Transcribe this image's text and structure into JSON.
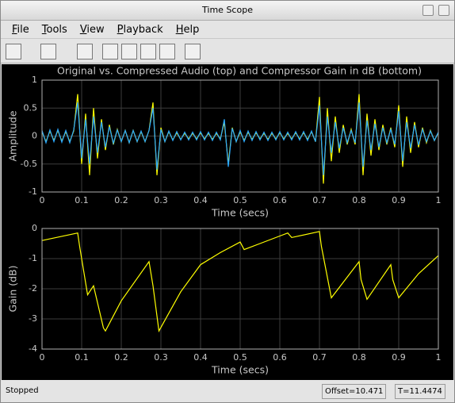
{
  "window": {
    "title": "Time Scope"
  },
  "menu": [
    "File",
    "Tools",
    "View",
    "Playback",
    "Help"
  ],
  "status": {
    "state": "Stopped",
    "offset": "Offset=10.471",
    "time": "T=11.4474"
  },
  "chart_data": [
    {
      "type": "line",
      "title": "Original vs. Compressed Audio (top) and Compressor Gain in dB (bottom)",
      "x_label": "Time (secs)",
      "y_label": "Amplitude",
      "xlim": [
        0,
        1
      ],
      "xticks": [
        0,
        0.1,
        0.2,
        0.3,
        0.4,
        0.5,
        0.6,
        0.7,
        0.8,
        0.9,
        1
      ],
      "ylim": [
        -1,
        1
      ],
      "yticks": [
        -1,
        -0.5,
        0,
        0.5,
        1
      ],
      "grid": true,
      "x": [
        0,
        0.01,
        0.02,
        0.03,
        0.04,
        0.05,
        0.06,
        0.07,
        0.08,
        0.09,
        0.1,
        0.11,
        0.12,
        0.13,
        0.14,
        0.15,
        0.16,
        0.17,
        0.18,
        0.19,
        0.2,
        0.21,
        0.22,
        0.23,
        0.24,
        0.25,
        0.26,
        0.27,
        0.28,
        0.29,
        0.3,
        0.31,
        0.32,
        0.33,
        0.34,
        0.35,
        0.36,
        0.37,
        0.38,
        0.39,
        0.4,
        0.41,
        0.42,
        0.43,
        0.44,
        0.45,
        0.46,
        0.47,
        0.48,
        0.49,
        0.5,
        0.51,
        0.52,
        0.53,
        0.54,
        0.55,
        0.56,
        0.57,
        0.58,
        0.59,
        0.6,
        0.61,
        0.62,
        0.63,
        0.64,
        0.65,
        0.66,
        0.67,
        0.68,
        0.69,
        0.7,
        0.71,
        0.72,
        0.73,
        0.74,
        0.75,
        0.76,
        0.77,
        0.78,
        0.79,
        0.8,
        0.81,
        0.82,
        0.83,
        0.84,
        0.85,
        0.86,
        0.87,
        0.88,
        0.89,
        0.9,
        0.91,
        0.92,
        0.93,
        0.94,
        0.95,
        0.96,
        0.97,
        0.98,
        0.99,
        1
      ],
      "series": [
        {
          "color": "#ffff00",
          "values": [
            0.08,
            -0.1,
            0.09,
            -0.08,
            0.1,
            -0.09,
            0.08,
            -0.1,
            0.09,
            0.75,
            -0.5,
            0.4,
            -0.7,
            0.5,
            -0.4,
            0.3,
            -0.25,
            0.2,
            -0.15,
            0.12,
            -0.1,
            0.1,
            -0.12,
            0.1,
            -0.1,
            0.08,
            -0.1,
            0.1,
            0.6,
            -0.7,
            0.15,
            -0.1,
            0.08,
            -0.07,
            0.06,
            -0.06,
            0.05,
            -0.05,
            0.05,
            -0.05,
            0.06,
            -0.05,
            0.05,
            -0.06,
            0.05,
            -0.05,
            0.25,
            -0.5,
            0.15,
            -0.1,
            0.08,
            -0.08,
            0.07,
            -0.06,
            0.06,
            -0.05,
            0.05,
            -0.06,
            0.05,
            -0.05,
            0.06,
            -0.05,
            0.05,
            -0.05,
            0.06,
            -0.05,
            0.06,
            -0.06,
            0.08,
            -0.1,
            0.7,
            -0.85,
            0.5,
            -0.45,
            0.35,
            -0.3,
            0.2,
            -0.15,
            0.12,
            -0.15,
            0.75,
            -0.7,
            0.4,
            -0.35,
            0.3,
            -0.25,
            0.2,
            -0.15,
            0.15,
            -0.2,
            0.55,
            -0.55,
            0.35,
            -0.3,
            0.25,
            -0.2,
            0.15,
            -0.12,
            0.1,
            -0.08,
            0.06
          ]
        },
        {
          "color": "#29a8ff",
          "values": [
            0.1,
            -0.12,
            0.11,
            -0.1,
            0.12,
            -0.11,
            0.1,
            -0.12,
            0.11,
            0.6,
            -0.4,
            0.3,
            -0.5,
            0.35,
            -0.3,
            0.25,
            -0.2,
            0.17,
            -0.13,
            0.11,
            -0.1,
            0.1,
            -0.12,
            0.1,
            -0.1,
            0.09,
            -0.1,
            0.1,
            0.5,
            -0.6,
            0.12,
            -0.1,
            0.09,
            -0.08,
            0.08,
            -0.07,
            0.07,
            -0.07,
            0.07,
            -0.07,
            0.08,
            -0.07,
            0.07,
            -0.08,
            0.07,
            -0.07,
            0.3,
            -0.55,
            0.14,
            -0.1,
            0.1,
            -0.1,
            0.09,
            -0.08,
            0.08,
            -0.07,
            0.07,
            -0.08,
            0.07,
            -0.07,
            0.08,
            -0.07,
            0.07,
            -0.07,
            0.08,
            -0.07,
            0.08,
            -0.08,
            0.09,
            -0.1,
            0.55,
            -0.7,
            0.35,
            -0.3,
            0.25,
            -0.22,
            0.15,
            -0.12,
            0.1,
            -0.12,
            0.6,
            -0.55,
            0.28,
            -0.25,
            0.22,
            -0.2,
            0.15,
            -0.12,
            0.12,
            -0.15,
            0.45,
            -0.45,
            0.25,
            -0.22,
            0.2,
            -0.16,
            0.12,
            -0.1,
            0.09,
            -0.08,
            0.07
          ]
        }
      ]
    },
    {
      "type": "line",
      "x_label": "Time (secs)",
      "y_label": "Gain (dB)",
      "xlim": [
        0,
        1
      ],
      "xticks": [
        0,
        0.1,
        0.2,
        0.3,
        0.4,
        0.5,
        0.6,
        0.7,
        0.8,
        0.9,
        1
      ],
      "ylim": [
        -4,
        0
      ],
      "yticks": [
        -4,
        -3,
        -2,
        -1,
        0
      ],
      "grid": true,
      "x": [
        0,
        0.09,
        0.095,
        0.115,
        0.13,
        0.155,
        0.16,
        0.2,
        0.27,
        0.28,
        0.295,
        0.35,
        0.4,
        0.45,
        0.5,
        0.51,
        0.55,
        0.6,
        0.62,
        0.63,
        0.7,
        0.705,
        0.73,
        0.8,
        0.805,
        0.82,
        0.88,
        0.885,
        0.9,
        0.95,
        1
      ],
      "series": [
        {
          "color": "#ffff00",
          "values": [
            -0.4,
            -0.15,
            -0.6,
            -2.2,
            -1.9,
            -3.3,
            -3.4,
            -2.4,
            -1.1,
            -1.9,
            -3.4,
            -2.1,
            -1.2,
            -0.8,
            -0.45,
            -0.7,
            -0.5,
            -0.25,
            -0.15,
            -0.3,
            -0.1,
            -0.6,
            -2.3,
            -1.1,
            -1.7,
            -2.35,
            -1.2,
            -1.7,
            -2.3,
            -1.5,
            -0.9
          ]
        }
      ]
    }
  ]
}
